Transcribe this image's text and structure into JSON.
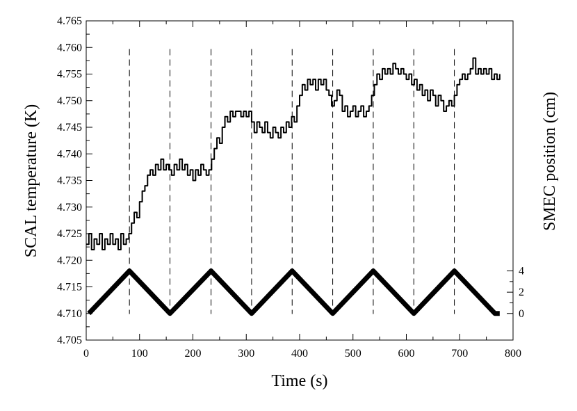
{
  "chart_data": {
    "type": "line",
    "title": "",
    "xlabel": "Time (s)",
    "ylabel": "SCAL temperature (K)",
    "y2label": "SMEC position (cm)",
    "xlim": [
      0,
      800
    ],
    "ylim": [
      4.705,
      4.765
    ],
    "y2lim": [
      -2.5,
      27.5
    ],
    "x_ticks": [
      "0",
      "100",
      "200",
      "300",
      "400",
      "500",
      "600",
      "700",
      "800"
    ],
    "y_ticks": [
      "4.705",
      "4.710",
      "4.715",
      "4.720",
      "4.725",
      "4.730",
      "4.735",
      "4.740",
      "4.745",
      "4.750",
      "4.755",
      "4.760",
      "4.765"
    ],
    "y2_ticks": [
      "0",
      "2",
      "4"
    ],
    "grid": false,
    "vlines_x": [
      81,
      157,
      234,
      310,
      386,
      462,
      538,
      614,
      690
    ],
    "series": [
      {
        "axis": "left",
        "step": true,
        "x": [
          0,
          5,
          10,
          15,
          20,
          25,
          30,
          35,
          40,
          45,
          50,
          55,
          60,
          65,
          70,
          75,
          80,
          85,
          90,
          95,
          100,
          105,
          110,
          115,
          120,
          125,
          130,
          135,
          140,
          145,
          150,
          155,
          160,
          165,
          170,
          175,
          180,
          185,
          190,
          195,
          200,
          205,
          210,
          215,
          220,
          225,
          230,
          235,
          240,
          245,
          250,
          255,
          260,
          265,
          270,
          275,
          280,
          285,
          290,
          295,
          300,
          305,
          310,
          315,
          320,
          325,
          330,
          335,
          340,
          345,
          350,
          355,
          360,
          365,
          370,
          375,
          380,
          385,
          390,
          395,
          400,
          405,
          410,
          415,
          420,
          425,
          430,
          435,
          440,
          445,
          450,
          455,
          460,
          465,
          470,
          475,
          480,
          485,
          490,
          495,
          500,
          505,
          510,
          515,
          520,
          525,
          530,
          535,
          540,
          545,
          550,
          555,
          560,
          565,
          570,
          575,
          580,
          585,
          590,
          595,
          600,
          605,
          610,
          615,
          620,
          625,
          630,
          635,
          640,
          645,
          650,
          655,
          660,
          665,
          670,
          675,
          680,
          685,
          690,
          695,
          700,
          705,
          710,
          715,
          720,
          725,
          730,
          735,
          740,
          745,
          750,
          755,
          760,
          765,
          770,
          775
        ],
        "y": [
          4.723,
          4.725,
          4.722,
          4.724,
          4.723,
          4.725,
          4.722,
          4.724,
          4.723,
          4.725,
          4.723,
          4.724,
          4.722,
          4.725,
          4.723,
          4.724,
          4.725,
          4.727,
          4.729,
          4.728,
          4.731,
          4.733,
          4.734,
          4.736,
          4.737,
          4.736,
          4.738,
          4.737,
          4.739,
          4.737,
          4.738,
          4.737,
          4.736,
          4.738,
          4.737,
          4.739,
          4.737,
          4.738,
          4.736,
          4.737,
          4.735,
          4.737,
          4.736,
          4.738,
          4.737,
          4.736,
          4.737,
          4.739,
          4.741,
          4.743,
          4.742,
          4.745,
          4.747,
          4.746,
          4.748,
          4.747,
          4.748,
          4.748,
          4.747,
          4.748,
          4.747,
          4.748,
          4.746,
          4.744,
          4.746,
          4.745,
          4.744,
          4.746,
          4.744,
          4.743,
          4.745,
          4.744,
          4.743,
          4.745,
          4.744,
          4.746,
          4.745,
          4.747,
          4.746,
          4.749,
          4.751,
          4.753,
          4.752,
          4.754,
          4.753,
          4.754,
          4.752,
          4.754,
          4.753,
          4.754,
          4.752,
          4.751,
          4.749,
          4.75,
          4.752,
          4.751,
          4.748,
          4.749,
          4.747,
          4.748,
          4.749,
          4.747,
          4.748,
          4.749,
          4.747,
          4.748,
          4.749,
          4.751,
          4.753,
          4.755,
          4.754,
          4.756,
          4.755,
          4.756,
          4.755,
          4.757,
          4.756,
          4.755,
          4.756,
          4.755,
          4.754,
          4.755,
          4.753,
          4.754,
          4.752,
          4.753,
          4.751,
          4.752,
          4.75,
          4.752,
          4.751,
          4.749,
          4.751,
          4.75,
          4.748,
          4.749,
          4.75,
          4.749,
          4.751,
          4.753,
          4.754,
          4.755,
          4.754,
          4.755,
          4.756,
          4.758,
          4.755,
          4.756,
          4.755,
          4.756,
          4.755,
          4.756,
          4.754,
          4.755,
          4.754,
          4.755
        ]
      },
      {
        "axis": "right",
        "x": [
          5,
          81,
          157,
          234,
          310,
          386,
          462,
          538,
          614,
          690,
          766,
          775
        ],
        "y": [
          0,
          4,
          0,
          4,
          0,
          4,
          0,
          4,
          0,
          4,
          0,
          0
        ]
      }
    ]
  }
}
